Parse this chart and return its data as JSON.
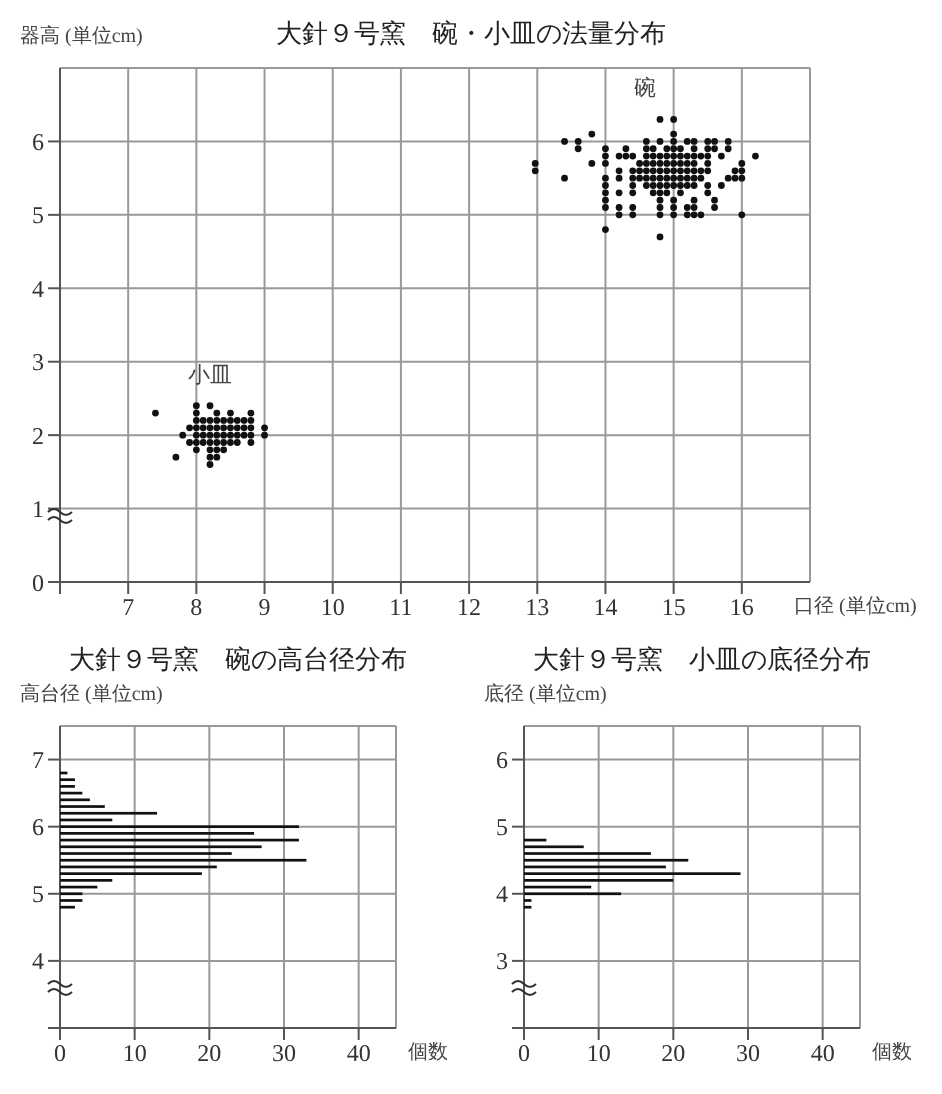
{
  "chart_data": [
    {
      "type": "scatter",
      "title": "大針９号窯　碗・小皿の法量分布",
      "xlabel": "口径 (単位cm)",
      "ylabel": "器高 (単位cm)",
      "marker": "circle",
      "grid": true,
      "xlim": [
        6,
        17
      ],
      "xticks": [
        {
          "value": 6,
          "label": null
        },
        7,
        8,
        9,
        10,
        11,
        12,
        13,
        14,
        15,
        16
      ],
      "ylim": [
        0,
        7
      ],
      "yticks": [
        0,
        1,
        2,
        3,
        4,
        5,
        6
      ],
      "annotations": [
        "碗",
        "小皿"
      ],
      "series": [
        {
          "color": "#111111",
          "x": [
            12.97,
            12.97,
            13.4,
            13.4,
            13.6,
            13.6,
            13.8,
            13.8,
            14.0,
            14.0,
            14.0,
            14.0,
            14.0,
            14.0,
            14.0,
            14.0,
            14.0,
            14.2,
            14.2,
            14.2,
            14.2,
            14.2,
            14.2,
            14.3,
            14.3,
            14.4,
            14.4,
            14.4,
            14.4,
            14.4,
            14.4,
            14.4,
            14.5,
            14.5,
            14.5,
            14.6,
            14.6,
            14.6,
            14.6,
            14.6,
            14.6,
            14.6,
            14.7,
            14.7,
            14.7,
            14.7,
            14.7,
            14.7,
            14.7,
            14.8,
            14.8,
            14.8,
            14.8,
            14.8,
            14.8,
            14.8,
            14.8,
            14.8,
            14.8,
            14.8,
            14.8,
            14.9,
            14.9,
            14.9,
            14.9,
            14.9,
            14.9,
            14.9,
            15.0,
            15.0,
            15.0,
            15.0,
            15.0,
            15.0,
            15.0,
            15.0,
            15.0,
            15.0,
            15.0,
            15.0,
            15.1,
            15.1,
            15.1,
            15.1,
            15.1,
            15.1,
            15.1,
            15.2,
            15.2,
            15.2,
            15.2,
            15.2,
            15.2,
            15.2,
            15.2,
            15.3,
            15.3,
            15.3,
            15.3,
            15.3,
            15.3,
            15.3,
            15.3,
            15.3,
            15.3,
            15.4,
            15.4,
            15.4,
            15.4,
            15.5,
            15.5,
            15.5,
            15.5,
            15.5,
            15.5,
            15.5,
            15.6,
            15.6,
            15.6,
            15.6,
            15.7,
            15.7,
            15.8,
            15.8,
            15.8,
            15.9,
            15.9,
            16.0,
            16.0,
            16.0,
            16.0,
            16.2
          ],
          "values": [
            5.7,
            5.6,
            6.0,
            5.5,
            6.0,
            5.9,
            6.1,
            5.7,
            5.9,
            5.8,
            5.7,
            5.5,
            5.4,
            5.3,
            5.2,
            5.1,
            4.8,
            5.8,
            5.6,
            5.5,
            5.3,
            5.1,
            5.0,
            5.9,
            5.8,
            5.8,
            5.6,
            5.5,
            5.4,
            5.3,
            5.1,
            5.0,
            5.7,
            5.6,
            5.5,
            6.0,
            5.9,
            5.8,
            5.7,
            5.6,
            5.5,
            5.4,
            5.9,
            5.8,
            5.7,
            5.6,
            5.5,
            5.4,
            5.3,
            6.3,
            6.0,
            5.8,
            5.7,
            5.6,
            5.5,
            5.4,
            5.3,
            5.2,
            5.1,
            5.0,
            4.7,
            5.9,
            5.8,
            5.7,
            5.6,
            5.5,
            5.4,
            5.3,
            6.3,
            6.1,
            6.0,
            5.9,
            5.8,
            5.7,
            5.6,
            5.5,
            5.4,
            5.2,
            5.1,
            5.0,
            5.9,
            5.8,
            5.7,
            5.6,
            5.5,
            5.4,
            5.3,
            6.0,
            5.8,
            5.7,
            5.6,
            5.5,
            5.4,
            5.1,
            5.0,
            6.0,
            5.9,
            5.8,
            5.7,
            5.6,
            5.5,
            5.4,
            5.2,
            5.1,
            5.0,
            5.8,
            5.6,
            5.5,
            5.0,
            6.0,
            5.9,
            5.8,
            5.7,
            5.6,
            5.4,
            5.3,
            6.0,
            5.9,
            5.2,
            5.1,
            5.8,
            5.4,
            6.0,
            5.9,
            5.5,
            5.6,
            5.5,
            5.7,
            5.6,
            5.5,
            5.0,
            5.8
          ]
        },
        {
          "color": "#111111",
          "x": [
            7.4,
            7.7,
            7.8,
            7.9,
            7.9,
            8.0,
            8.0,
            8.0,
            8.0,
            8.0,
            8.0,
            8.0,
            8.1,
            8.1,
            8.1,
            8.1,
            8.2,
            8.2,
            8.2,
            8.2,
            8.2,
            8.2,
            8.2,
            8.2,
            8.3,
            8.3,
            8.3,
            8.3,
            8.3,
            8.3,
            8.3,
            8.4,
            8.4,
            8.4,
            8.4,
            8.4,
            8.5,
            8.5,
            8.5,
            8.5,
            8.5,
            8.6,
            8.6,
            8.6,
            8.6,
            8.7,
            8.7,
            8.7,
            8.8,
            8.8,
            8.8,
            8.8,
            8.8,
            9.0,
            9.0
          ],
          "values": [
            2.3,
            1.7,
            2.0,
            2.1,
            1.9,
            2.4,
            2.3,
            2.2,
            2.1,
            2.0,
            1.9,
            1.8,
            2.2,
            2.1,
            2.0,
            1.9,
            2.4,
            2.2,
            2.1,
            2.0,
            1.9,
            1.8,
            1.7,
            1.6,
            2.3,
            2.2,
            2.1,
            2.0,
            1.9,
            1.8,
            1.7,
            2.2,
            2.1,
            2.0,
            1.9,
            1.8,
            2.3,
            2.2,
            2.1,
            2.0,
            1.9,
            2.2,
            2.1,
            2.0,
            1.9,
            2.2,
            2.1,
            2.0,
            2.3,
            2.2,
            2.1,
            2.0,
            1.9,
            2.1,
            2.0
          ]
        }
      ]
    },
    {
      "type": "histogram",
      "orientation": "horizontal",
      "title": "大針９号窯　碗の高台径分布",
      "ylabel": "高台径 (単位cm)",
      "xlabel": "個数",
      "grid": true,
      "color": "#111111",
      "xlim": [
        0,
        45
      ],
      "xticks": [
        0,
        10,
        20,
        30,
        40
      ],
      "ylim": [
        3,
        7.5
      ],
      "yticks": [
        {
          "value": 3,
          "label": null
        },
        4,
        5,
        6,
        7
      ],
      "bins": [
        4.75,
        4.85,
        4.95,
        5.05,
        5.15,
        5.25,
        5.35,
        5.45,
        5.55,
        5.65,
        5.75,
        5.85,
        5.95,
        6.05,
        6.15,
        6.25,
        6.35,
        6.45,
        6.55,
        6.65,
        6.75,
        6.85
      ],
      "values": [
        2,
        3,
        3,
        5,
        7,
        19,
        21,
        33,
        23,
        27,
        32,
        26,
        32,
        7,
        13,
        6,
        4,
        3,
        2,
        2,
        1
      ]
    },
    {
      "type": "histogram",
      "orientation": "horizontal",
      "title": "大針９号窯　小皿の底径分布",
      "ylabel": "底径 (単位cm)",
      "xlabel": "個数",
      "grid": true,
      "color": "#111111",
      "xlim": [
        0,
        45
      ],
      "xticks": [
        0,
        10,
        20,
        30,
        40
      ],
      "ylim": [
        2,
        6.5
      ],
      "yticks": [
        {
          "value": 2,
          "label": null
        },
        3,
        4,
        5,
        6
      ],
      "bins": [
        3.75,
        3.85,
        3.95,
        4.05,
        4.15,
        4.25,
        4.35,
        4.45,
        4.55,
        4.65,
        4.75,
        4.85
      ],
      "values": [
        1,
        1,
        13,
        9,
        20,
        29,
        19,
        22,
        17,
        8,
        3
      ]
    }
  ]
}
